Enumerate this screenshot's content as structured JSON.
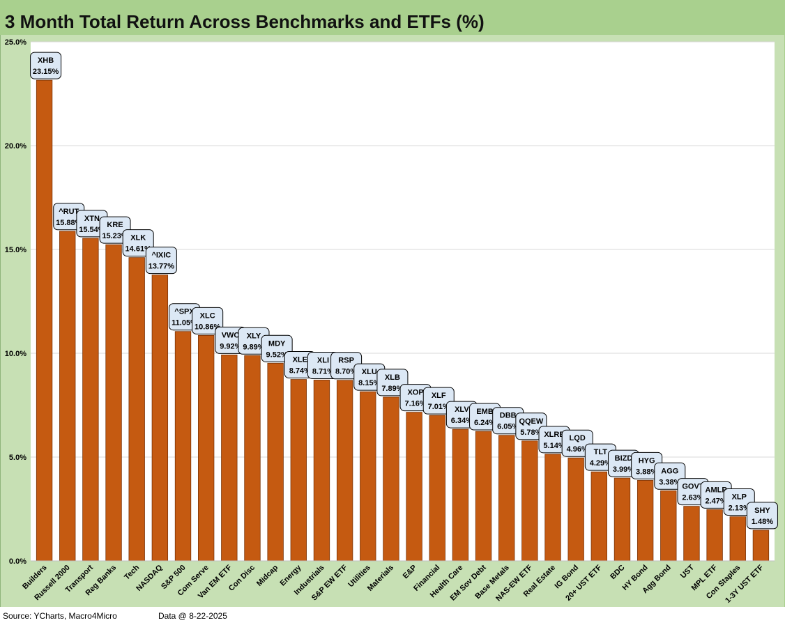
{
  "title": "3 Month Total Return Across Benchmarks and ETFs (%)",
  "footer": {
    "source": "Source: YCharts, Macro4Micro",
    "data_date": "Data @ 8-22-2025"
  },
  "colors": {
    "bar": "#c55a11",
    "bar_outline": "#7a3408",
    "frame": "#a9d08e",
    "label_box": "#dce8f5"
  },
  "chart_data": {
    "type": "bar",
    "title": "3 Month Total Return Across Benchmarks and ETFs (%)",
    "ylim": [
      0,
      25
    ],
    "yticks": [
      "0.0%",
      "5.0%",
      "10.0%",
      "15.0%",
      "20.0%",
      "25.0%"
    ],
    "grid": true,
    "categories": [
      "Builders",
      "Russell 2000",
      "Transport",
      "Reg Banks",
      "Tech",
      "NASDAQ",
      "S&P 500",
      "Com Serve",
      "Van EM ETF",
      "Con Disc",
      "Midcap",
      "Energy",
      "Industrials",
      "S&P EW ETF",
      "Utilities",
      "Materials",
      "E&P",
      "Financial",
      "Health Care",
      "EM Sov Debt",
      "Base Metals",
      "NAS-EW ETF",
      "Real Estate",
      "IG Bond",
      "20+ UST ETF",
      "BDC",
      "HY Bond",
      "Agg Bond",
      "UST",
      "MPL ETF",
      "Con Staples",
      "1-3Y UST ETF"
    ],
    "tickers": [
      "XHB",
      "^RUT",
      "XTN",
      "KRE",
      "XLK",
      "^IXIC",
      "^SPX",
      "XLC",
      "VWO",
      "XLY",
      "MDY",
      "XLE",
      "XLI",
      "RSP",
      "XLU",
      "XLB",
      "XOP",
      "XLF",
      "XLV",
      "EMB",
      "DBB",
      "QQEW",
      "XLRE",
      "LQD",
      "TLT",
      "BIZD",
      "HYG",
      "AGG",
      "GOVT",
      "AMLP",
      "XLP",
      "SHY"
    ],
    "values": [
      23.15,
      15.88,
      15.54,
      15.23,
      14.61,
      13.77,
      11.05,
      10.86,
      9.92,
      9.89,
      9.52,
      8.74,
      8.71,
      8.7,
      8.15,
      7.89,
      7.16,
      7.01,
      6.34,
      6.24,
      6.05,
      5.78,
      5.14,
      4.96,
      4.29,
      3.99,
      3.88,
      3.38,
      2.63,
      2.47,
      2.13,
      1.48
    ],
    "value_labels": [
      "23.15%",
      "15.88%",
      "15.54%",
      "15.23%",
      "14.61%",
      "13.77%",
      "11.05%",
      "10.86%",
      "9.92%",
      "9.89%",
      "9.52%",
      "8.74%",
      "8.71%",
      "8.70%",
      "8.15%",
      "7.89%",
      "7.16%",
      "7.01%",
      "6.34%",
      "6.24%",
      "6.05%",
      "5.78%",
      "5.14%",
      "4.96%",
      "4.29%",
      "3.99%",
      "3.88%",
      "3.38%",
      "2.63%",
      "2.47%",
      "2.13%",
      "1.48%"
    ]
  }
}
